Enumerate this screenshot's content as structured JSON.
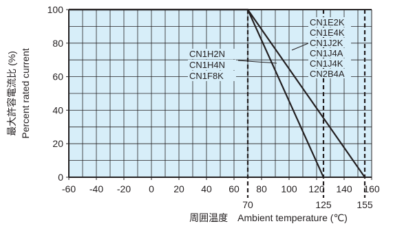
{
  "chart_data": {
    "type": "line",
    "title": "",
    "xlabel": "周囲温度　Ambient temperature (℃)",
    "ylabel_jp": "最大許容電流比 (%)",
    "ylabel_en": "Percent rated current",
    "xlim": [
      -60,
      160
    ],
    "ylim": [
      0,
      100
    ],
    "x_ticks": [
      -60,
      -40,
      -20,
      0,
      20,
      40,
      60,
      80,
      100,
      120,
      140,
      160
    ],
    "y_ticks": [
      0,
      20,
      40,
      60,
      80,
      100
    ],
    "x_tick_labels": [
      "-60",
      "-40",
      "-20",
      "0",
      "20",
      "40",
      "60",
      "80",
      "100",
      "120",
      "140",
      "160"
    ],
    "y_tick_labels": [
      "0",
      "20",
      "40",
      "60",
      "80",
      "100"
    ],
    "grid": true,
    "minor_grid_step_x": 10,
    "minor_grid_step_y": 10,
    "background_color": "#d7eef9",
    "line_color": "#231f20",
    "markers": [
      {
        "x": 70,
        "label": "70"
      },
      {
        "x": 125,
        "label": "125"
      },
      {
        "x": 155,
        "label": "155"
      }
    ],
    "series": [
      {
        "models": [
          "CN1H2N",
          "CN1H4N",
          "CN1F8K"
        ],
        "x": [
          -60,
          70,
          125
        ],
        "y": [
          100,
          100,
          0
        ]
      },
      {
        "models": [
          "CN1E2K",
          "CN1E4K",
          "CN1J2K",
          "CN1J4A",
          "CN1J4K",
          "CN2B4A"
        ],
        "x": [
          -60,
          70,
          155
        ],
        "y": [
          100,
          100,
          0
        ]
      }
    ],
    "annotations": [
      {
        "group": "left",
        "labels": [
          "CN1H2N",
          "CN1H4N",
          "CN1F8K"
        ]
      },
      {
        "group": "right",
        "labels": [
          "CN1E2K",
          "CN1E4K",
          "CN1J2K",
          "CN1J4A",
          "CN1J4K",
          "CN2B4A"
        ]
      }
    ]
  }
}
